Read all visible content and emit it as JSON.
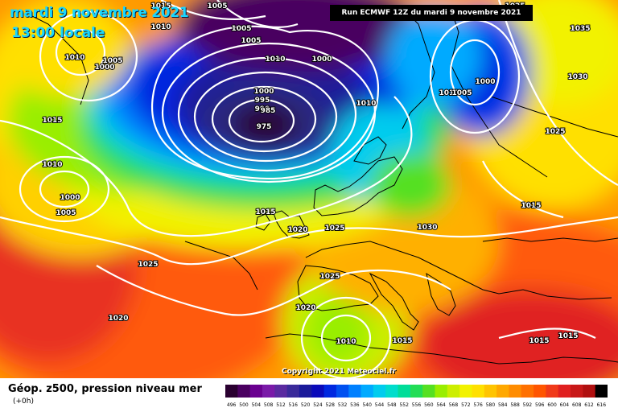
{
  "header": {
    "date": "mardi 9 novembre 2021",
    "time": "13:00 locale",
    "run": "Run ECMWF 12Z du mardi 9 novembre 2021"
  },
  "copyright": "Copyright 2021 Meteociel.fr",
  "legend": {
    "title": "Géop. z500, pression niveau mer",
    "subtitle": "(+0h)",
    "values": [
      "496",
      "500",
      "504",
      "508",
      "512",
      "516",
      "520",
      "524",
      "528",
      "532",
      "536",
      "540",
      "544",
      "548",
      "552",
      "556",
      "560",
      "564",
      "568",
      "572",
      "576",
      "580",
      "584",
      "588",
      "592",
      "596",
      "600",
      "604",
      "608",
      "612",
      "616"
    ],
    "colors": [
      "#2a0030",
      "#4a0060",
      "#6a0090",
      "#7a1aa8",
      "#5a2aa0",
      "#3a2a9a",
      "#1a1a9a",
      "#0a0aba",
      "#0028e0",
      "#0050f0",
      "#0080ff",
      "#00aaff",
      "#00ccee",
      "#00ddcc",
      "#00dd99",
      "#22dd55",
      "#55e022",
      "#99ee00",
      "#ccee00",
      "#f2f200",
      "#ffe000",
      "#ffc400",
      "#ffa800",
      "#ff8c00",
      "#ff7000",
      "#ff5500",
      "#f03a1a",
      "#e02020",
      "#c81818",
      "#b01010",
      "#000000"
    ]
  },
  "isobars": [
    "1010",
    "1015",
    "1005",
    "1005",
    "1015",
    "1005",
    "1010",
    "1000",
    "1005",
    "1000",
    "1010",
    "1000",
    "995",
    "990",
    "985",
    "975",
    "1010",
    "1035",
    "1000",
    "1010",
    "1005",
    "1030",
    "1025",
    "1015",
    "1010",
    "1000",
    "1005",
    "1015",
    "1025",
    "1020",
    "1025",
    "1030",
    "1025",
    "1025",
    "1020",
    "1020",
    "1010",
    "1015",
    "1015",
    "1015"
  ]
}
